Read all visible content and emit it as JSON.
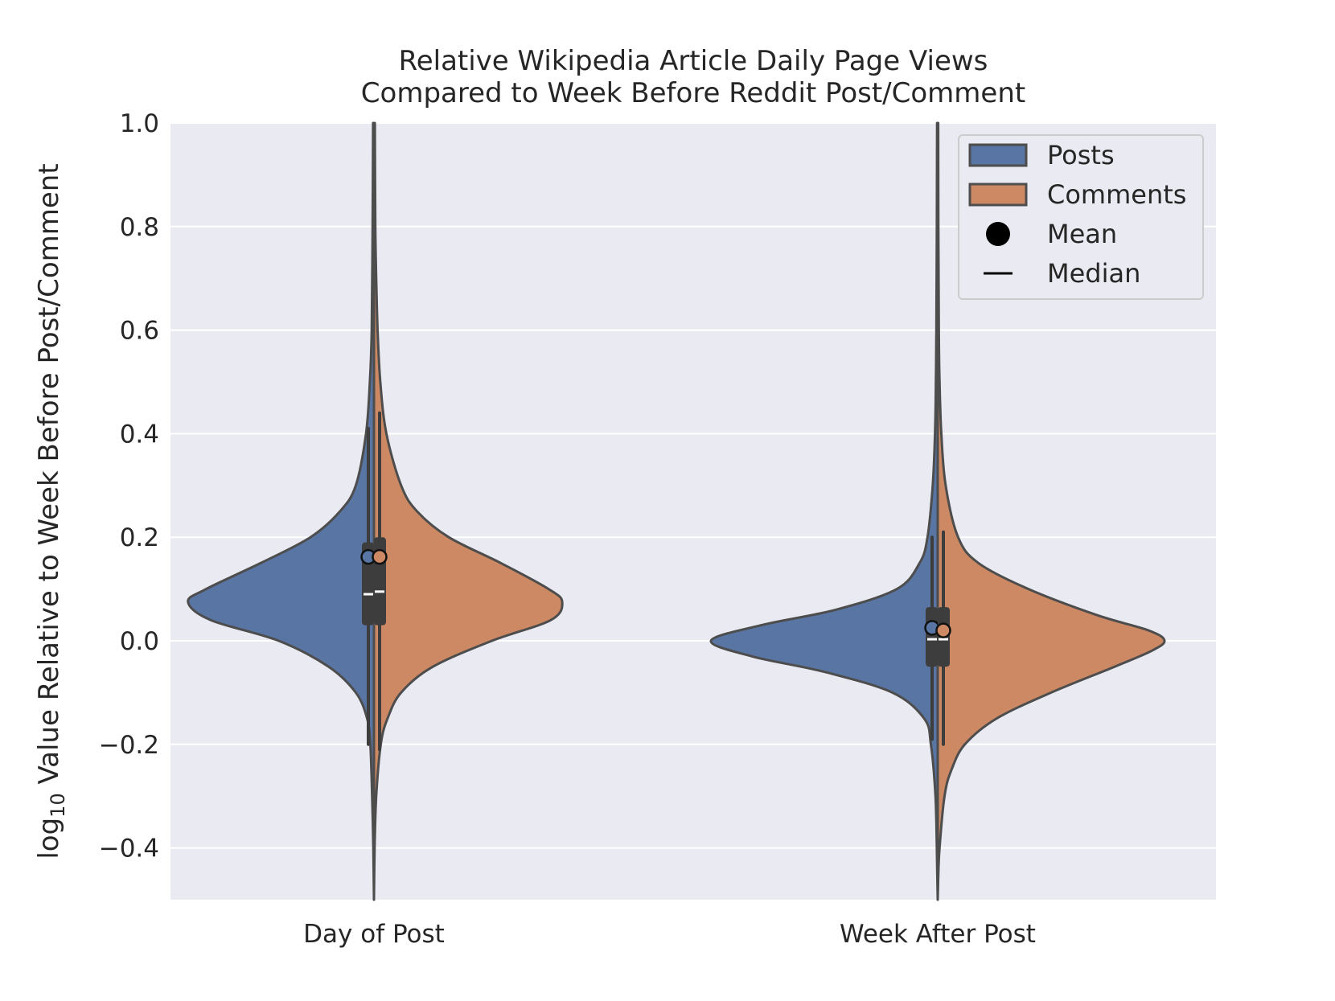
{
  "chart_data": {
    "type": "violin",
    "title_lines": [
      "Relative Wikipedia Article Daily Page Views",
      "Compared to Week Before Reddit Post/Comment"
    ],
    "ylabel_prefix": "log",
    "ylabel_sub": "10",
    "ylabel_rest": " Value Relative to Week Before Post/Comment",
    "ylim": [
      -0.5,
      1.0
    ],
    "yticks": [
      -0.4,
      -0.2,
      0.0,
      0.2,
      0.4,
      0.6,
      0.8,
      1.0
    ],
    "ytick_labels": [
      "−0.4",
      "−0.2",
      "0.0",
      "0.2",
      "0.4",
      "0.6",
      "0.8",
      "1.0"
    ],
    "grid": true,
    "legend_position": "top-right",
    "categories": [
      "Day of Post",
      "Week After Post"
    ],
    "series": [
      {
        "name": "Posts",
        "color": "#5975a4",
        "side": "left",
        "groups": [
          {
            "category": "Day of Post",
            "mean": 0.162,
            "median": 0.09,
            "q1": 0.03,
            "q3": 0.19,
            "whisker_low": -0.2,
            "whisker_high": 0.41,
            "profile": [
              [
                -0.5,
                0.0
              ],
              [
                -0.4,
                0.003
              ],
              [
                -0.3,
                0.008
              ],
              [
                -0.2,
                0.016
              ],
              [
                -0.15,
                0.03
              ],
              [
                -0.1,
                0.08
              ],
              [
                -0.05,
                0.2
              ],
              [
                0.0,
                0.42
              ],
              [
                0.04,
                0.72
              ],
              [
                0.075,
                0.82
              ],
              [
                0.1,
                0.74
              ],
              [
                0.15,
                0.5
              ],
              [
                0.2,
                0.28
              ],
              [
                0.25,
                0.15
              ],
              [
                0.3,
                0.08
              ],
              [
                0.4,
                0.035
              ],
              [
                0.5,
                0.018
              ],
              [
                0.6,
                0.01
              ],
              [
                0.8,
                0.006
              ],
              [
                1.0,
                0.004
              ]
            ]
          },
          {
            "category": "Week After Post",
            "mean": 0.025,
            "median": 0.003,
            "q1": -0.05,
            "q3": 0.065,
            "whisker_low": -0.19,
            "whisker_high": 0.2,
            "profile": [
              [
                -0.5,
                0.0
              ],
              [
                -0.45,
                0.002
              ],
              [
                -0.4,
                0.004
              ],
              [
                -0.3,
                0.01
              ],
              [
                -0.2,
                0.03
              ],
              [
                -0.15,
                0.06
              ],
              [
                -0.1,
                0.2
              ],
              [
                -0.06,
                0.5
              ],
              [
                -0.03,
                0.82
              ],
              [
                0.0,
                1.0
              ],
              [
                0.03,
                0.78
              ],
              [
                0.06,
                0.45
              ],
              [
                0.1,
                0.18
              ],
              [
                0.15,
                0.08
              ],
              [
                0.2,
                0.045
              ],
              [
                0.3,
                0.022
              ],
              [
                0.4,
                0.012
              ],
              [
                0.5,
                0.008
              ],
              [
                0.6,
                0.006
              ],
              [
                0.8,
                0.004
              ],
              [
                1.0,
                0.003
              ]
            ]
          }
        ]
      },
      {
        "name": "Comments",
        "color": "#cc8963",
        "side": "right",
        "groups": [
          {
            "category": "Day of Post",
            "mean": 0.162,
            "median": 0.095,
            "q1": 0.03,
            "q3": 0.2,
            "whisker_low": -0.21,
            "whisker_high": 0.44,
            "profile": [
              [
                -0.5,
                0.0
              ],
              [
                -0.4,
                0.003
              ],
              [
                -0.3,
                0.01
              ],
              [
                -0.2,
                0.03
              ],
              [
                -0.15,
                0.06
              ],
              [
                -0.1,
                0.12
              ],
              [
                -0.05,
                0.26
              ],
              [
                0.0,
                0.52
              ],
              [
                0.04,
                0.78
              ],
              [
                0.075,
                0.83
              ],
              [
                0.1,
                0.77
              ],
              [
                0.15,
                0.56
              ],
              [
                0.2,
                0.33
              ],
              [
                0.25,
                0.19
              ],
              [
                0.3,
                0.12
              ],
              [
                0.4,
                0.055
              ],
              [
                0.5,
                0.028
              ],
              [
                0.6,
                0.016
              ],
              [
                0.7,
                0.01
              ],
              [
                0.8,
                0.006
              ],
              [
                1.0,
                0.004
              ]
            ]
          },
          {
            "category": "Week After Post",
            "mean": 0.02,
            "median": 0.003,
            "q1": -0.05,
            "q3": 0.065,
            "whisker_low": -0.2,
            "whisker_high": 0.21,
            "profile": [
              [
                -0.5,
                0.0
              ],
              [
                -0.45,
                0.003
              ],
              [
                -0.4,
                0.008
              ],
              [
                -0.3,
                0.03
              ],
              [
                -0.25,
                0.06
              ],
              [
                -0.2,
                0.12
              ],
              [
                -0.15,
                0.26
              ],
              [
                -0.1,
                0.5
              ],
              [
                -0.05,
                0.78
              ],
              [
                -0.02,
                0.94
              ],
              [
                0.0,
                1.0
              ],
              [
                0.02,
                0.93
              ],
              [
                0.05,
                0.7
              ],
              [
                0.1,
                0.4
              ],
              [
                0.15,
                0.18
              ],
              [
                0.2,
                0.09
              ],
              [
                0.3,
                0.035
              ],
              [
                0.4,
                0.016
              ],
              [
                0.5,
                0.008
              ],
              [
                0.6,
                0.005
              ],
              [
                0.8,
                0.003
              ],
              [
                1.0,
                0.002
              ]
            ]
          }
        ]
      }
    ],
    "legend": [
      {
        "label": "Posts",
        "kind": "patch",
        "color": "#5975a4"
      },
      {
        "label": "Comments",
        "kind": "patch",
        "color": "#cc8963"
      },
      {
        "label": "Mean",
        "kind": "dot",
        "color": "#000000"
      },
      {
        "label": "Median",
        "kind": "line",
        "color": "#000000"
      }
    ],
    "colors": {
      "plot_background": "#eaeaf2",
      "grid": "#ffffff",
      "outline": "#4d4d4d",
      "box": "#3d3d3d",
      "median": "#ffffff"
    }
  }
}
